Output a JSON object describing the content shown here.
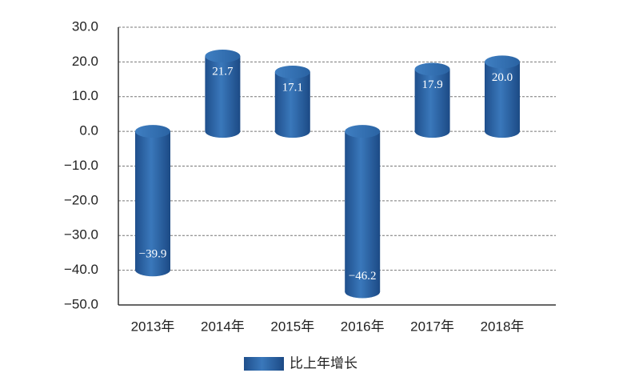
{
  "chart_data": {
    "type": "bar",
    "categories": [
      "2013年",
      "2014年",
      "2015年",
      "2016年",
      "2017年",
      "2018年"
    ],
    "series": [
      {
        "name": "比上年增长",
        "color": "#2e67a8",
        "values": [
          -39.9,
          21.7,
          17.1,
          -46.2,
          17.9,
          20.0
        ],
        "value_labels": [
          "−39.9",
          "21.7",
          "17.1",
          "−46.2",
          "17.9",
          "20.0"
        ]
      }
    ],
    "ylim": [
      -50,
      30
    ],
    "yticks": [
      {
        "value": -50,
        "label": "−50.0"
      },
      {
        "value": -40,
        "label": "−40.0"
      },
      {
        "value": -30,
        "label": "−30.0"
      },
      {
        "value": -20,
        "label": "−20.0"
      },
      {
        "value": -10,
        "label": "−10.0"
      },
      {
        "value": 0,
        "label": "0.0"
      },
      {
        "value": 10,
        "label": "10.0"
      },
      {
        "value": 20,
        "label": "20.0"
      },
      {
        "value": 30,
        "label": "30.0"
      }
    ],
    "grid": true,
    "legend": "bottom"
  }
}
